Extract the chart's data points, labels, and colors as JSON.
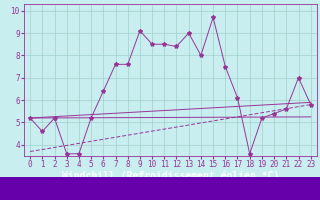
{
  "title": "",
  "xlabel": "Windchill (Refroidissement éolien,°C)",
  "ylabel": "",
  "background_color": "#c8eef0",
  "grid_color": "#a0d0c8",
  "line_color": "#993399",
  "xlim": [
    -0.5,
    23.5
  ],
  "ylim": [
    3.5,
    10.3
  ],
  "xticks": [
    0,
    1,
    2,
    3,
    4,
    5,
    6,
    7,
    8,
    9,
    10,
    11,
    12,
    13,
    14,
    15,
    16,
    17,
    18,
    19,
    20,
    21,
    22,
    23
  ],
  "yticks": [
    4,
    5,
    6,
    7,
    8,
    9,
    10
  ],
  "series1_x": [
    0,
    1,
    2,
    3,
    4,
    5,
    6,
    7,
    8,
    9,
    10,
    11,
    12,
    13,
    14,
    15,
    16,
    17,
    18,
    19,
    20,
    21,
    22,
    23
  ],
  "series1_y": [
    5.2,
    4.6,
    5.2,
    3.6,
    3.6,
    5.2,
    6.4,
    7.6,
    7.6,
    9.1,
    8.5,
    8.5,
    8.4,
    9.0,
    8.0,
    9.7,
    7.5,
    6.1,
    3.6,
    5.2,
    5.4,
    5.6,
    7.0,
    5.8
  ],
  "series2_x": [
    0,
    23
  ],
  "series2_y": [
    5.2,
    5.25
  ],
  "series3_x": [
    0,
    23
  ],
  "series3_y": [
    5.2,
    5.9
  ],
  "series4_x": [
    0,
    23
  ],
  "series4_y": [
    3.7,
    5.8
  ],
  "marker": "*",
  "marker_size": 3,
  "font_size": 7,
  "tick_font_size": 5.5,
  "xlabel_bottom_color": "#660066"
}
